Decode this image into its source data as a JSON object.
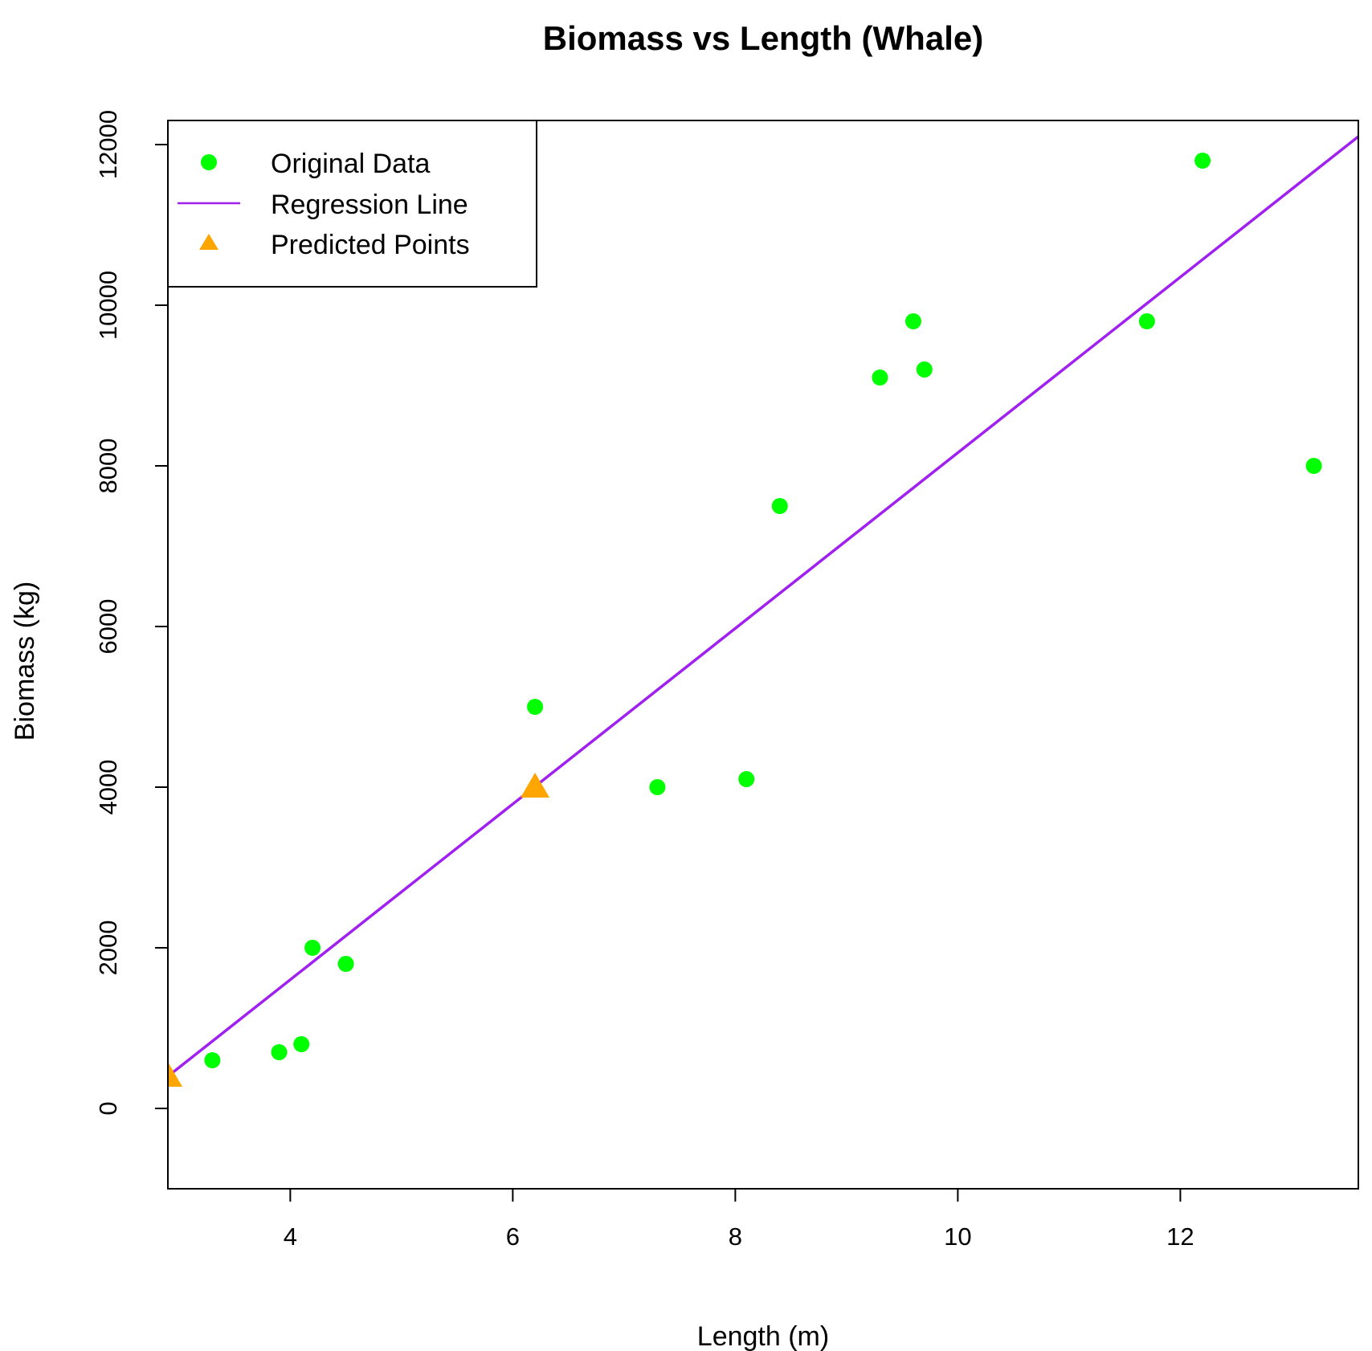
{
  "chart_data": {
    "type": "scatter",
    "title": "Biomass vs Length (Whale)",
    "xlabel": "Length (m)",
    "ylabel": "Biomass (kg)",
    "xlim": [
      2.9,
      13.6
    ],
    "ylim": [
      -1000,
      12300
    ],
    "x_ticks": [
      4,
      6,
      8,
      10,
      12
    ],
    "y_ticks": [
      0,
      2000,
      4000,
      6000,
      8000,
      10000,
      12000
    ],
    "grid": false,
    "legend_position": "top-left",
    "series": [
      {
        "name": "Original Data",
        "kind": "points",
        "color": "#00ff00",
        "marker": "circle",
        "points": [
          {
            "x": 3.3,
            "y": 600
          },
          {
            "x": 3.9,
            "y": 700
          },
          {
            "x": 4.1,
            "y": 800
          },
          {
            "x": 4.2,
            "y": 2000
          },
          {
            "x": 4.5,
            "y": 1800
          },
          {
            "x": 6.2,
            "y": 5000
          },
          {
            "x": 7.3,
            "y": 4000
          },
          {
            "x": 8.1,
            "y": 4100
          },
          {
            "x": 8.4,
            "y": 7500
          },
          {
            "x": 9.3,
            "y": 9100
          },
          {
            "x": 9.6,
            "y": 9800
          },
          {
            "x": 9.7,
            "y": 9200
          },
          {
            "x": 11.7,
            "y": 9800
          },
          {
            "x": 12.2,
            "y": 11800
          },
          {
            "x": 13.2,
            "y": 8000
          }
        ]
      },
      {
        "name": "Regression Line",
        "kind": "line",
        "color": "#a020f0",
        "points": [
          {
            "x": 2.9,
            "y": 400
          },
          {
            "x": 13.6,
            "y": 12100
          }
        ]
      },
      {
        "name": "Predicted Points",
        "kind": "points",
        "color": "#ffa500",
        "marker": "triangle",
        "points": [
          {
            "x": 2.9,
            "y": 400
          },
          {
            "x": 6.2,
            "y": 4000
          }
        ]
      }
    ]
  }
}
